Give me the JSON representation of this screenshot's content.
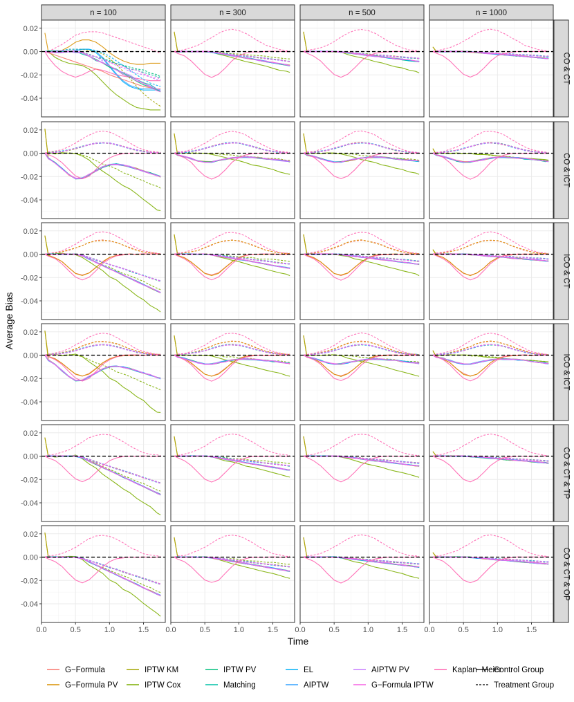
{
  "chart_data": {
    "type": "line",
    "xlabel": "Time",
    "ylabel": "Average Bias",
    "xlim": [
      0,
      1.82
    ],
    "ylim": [
      -0.056,
      0.027
    ],
    "x_ticks": [
      0.0,
      0.5,
      1.0,
      1.5
    ],
    "x_tick_labels": [
      "0.0",
      "0.5",
      "1.0",
      "1.5"
    ],
    "y_ticks": [
      0.02,
      0.0,
      -0.02,
      -0.04
    ],
    "y_tick_labels": [
      "0.02",
      "0.00",
      "-0.02",
      "-0.04"
    ],
    "col_facets": [
      "n = 100",
      "n = 300",
      "n = 500",
      "n = 1000"
    ],
    "row_facets": [
      "CO & CT",
      "CO & ICT",
      "ICO & CT",
      "ICO & ICT",
      "CO & CT & TP",
      "CO & CT & OP"
    ],
    "reference_line_y": 0,
    "methods": [
      {
        "name": "G−Formula",
        "color": "#F8766D"
      },
      {
        "name": "G−Formula PV",
        "color": "#D89000"
      },
      {
        "name": "IPTW KM",
        "color": "#A3A500"
      },
      {
        "name": "IPTW Cox",
        "color": "#7CAE00"
      },
      {
        "name": "IPTW PV",
        "color": "#00BF7D"
      },
      {
        "name": "Matching",
        "color": "#00C1A7"
      },
      {
        "name": "EL",
        "color": "#00B0F6"
      },
      {
        "name": "AIPTW",
        "color": "#35A2FF"
      },
      {
        "name": "AIPTW PV",
        "color": "#C77CFF"
      },
      {
        "name": "G−Formula IPTW",
        "color": "#F564E3"
      },
      {
        "name": "Kaplan−Meier",
        "color": "#FF64B0"
      }
    ],
    "groups": [
      {
        "name": "Control Group",
        "linetype": "solid"
      },
      {
        "name": "Treatment Group",
        "linetype": "dashed"
      }
    ],
    "time_grid": [
      0.05,
      0.1,
      0.2,
      0.3,
      0.4,
      0.5,
      0.6,
      0.7,
      0.8,
      0.9,
      1.0,
      1.1,
      1.2,
      1.3,
      1.4,
      1.5,
      1.6,
      1.7,
      1.75
    ],
    "panels": [
      {
        "row": "CO & CT",
        "col": "n = 100",
        "series": [
          {
            "method": "IPTW Cox",
            "group": "Control Group",
            "values": [
              0,
              0,
              -0.005,
              -0.008,
              -0.01,
              -0.011,
              -0.012,
              -0.015,
              -0.02,
              -0.026,
              -0.032,
              -0.037,
              -0.041,
              -0.045,
              -0.048,
              -0.049,
              -0.05,
              -0.05,
              -0.05
            ]
          },
          {
            "method": "G−Formula PV",
            "group": "Control Group",
            "values": [
              0.016,
              0,
              0,
              0.001,
              0.004,
              0.008,
              0.01,
              0.01,
              0.008,
              0.004,
              -0.001,
              -0.005,
              -0.008,
              -0.01,
              -0.011,
              -0.011,
              -0.01,
              -0.01,
              -0.01
            ]
          },
          {
            "method": "AIPTW",
            "group": "Control Group",
            "values": [
              0,
              0,
              -0.001,
              -0.001,
              0,
              0.001,
              0.002,
              0.002,
              0,
              -0.005,
              -0.012,
              -0.019,
              -0.025,
              -0.029,
              -0.031,
              -0.032,
              -0.032,
              -0.032,
              -0.033
            ]
          },
          {
            "method": "EL",
            "group": "Control Group",
            "values": [
              0,
              0,
              -0.001,
              0,
              0,
              0.001,
              0.002,
              0.002,
              -0.001,
              -0.006,
              -0.013,
              -0.02,
              -0.026,
              -0.03,
              -0.032,
              -0.033,
              -0.033,
              -0.033,
              -0.033
            ]
          },
          {
            "method": "Kaplan−Meier",
            "group": "Control Group",
            "values": [
              0,
              -0.005,
              -0.012,
              -0.017,
              -0.02,
              -0.022,
              -0.02,
              -0.017,
              -0.015,
              -0.016,
              -0.018,
              -0.02,
              -0.021,
              -0.022,
              -0.023,
              -0.024,
              -0.025,
              -0.025,
              -0.025
            ]
          },
          {
            "method": "G−Formula",
            "group": "Control Group",
            "values": [
              0,
              -0.001,
              -0.003,
              -0.005,
              -0.007,
              -0.009,
              -0.011,
              -0.013,
              -0.015,
              -0.017,
              -0.02,
              -0.022,
              -0.024,
              -0.026,
              -0.028,
              -0.03,
              -0.031,
              -0.032,
              -0.032
            ]
          },
          {
            "method": "Kaplan−Meier",
            "group": "Treatment Group",
            "values": [
              0,
              0,
              0.003,
              0.006,
              0.01,
              0.014,
              0.016,
              0.017,
              0.017,
              0.016,
              0.014,
              0.012,
              0.01,
              0.008,
              0.006,
              0.004,
              0.002,
              0,
              -0.002
            ]
          },
          {
            "method": "IPTW KM",
            "group": "Treatment Group",
            "values": [
              0,
              0,
              0,
              0.001,
              0.002,
              0.002,
              0.002,
              0.001,
              0,
              -0.002,
              -0.006,
              -0.011,
              -0.017,
              -0.023,
              -0.03,
              -0.036,
              -0.041,
              -0.045,
              -0.047
            ]
          },
          {
            "method": "EL",
            "group": "Treatment Group",
            "values": [
              0,
              0,
              0,
              0.001,
              0.002,
              0.002,
              0.002,
              0.002,
              0.001,
              -0.001,
              -0.004,
              -0.008,
              -0.012,
              -0.016,
              -0.02,
              -0.024,
              -0.027,
              -0.029,
              -0.03
            ]
          }
        ]
      }
    ]
  },
  "legend": {
    "methods_columns": [
      [
        "G−Formula",
        "G−Formula PV"
      ],
      [
        "IPTW KM",
        "IPTW Cox"
      ],
      [
        "IPTW PV",
        "Matching"
      ],
      [
        "EL",
        "AIPTW"
      ],
      [
        "AIPTW PV",
        "G−Formula IPTW"
      ],
      [
        "Kaplan−Meier"
      ]
    ],
    "linetypes": [
      "Control Group",
      "Treatment Group"
    ]
  }
}
